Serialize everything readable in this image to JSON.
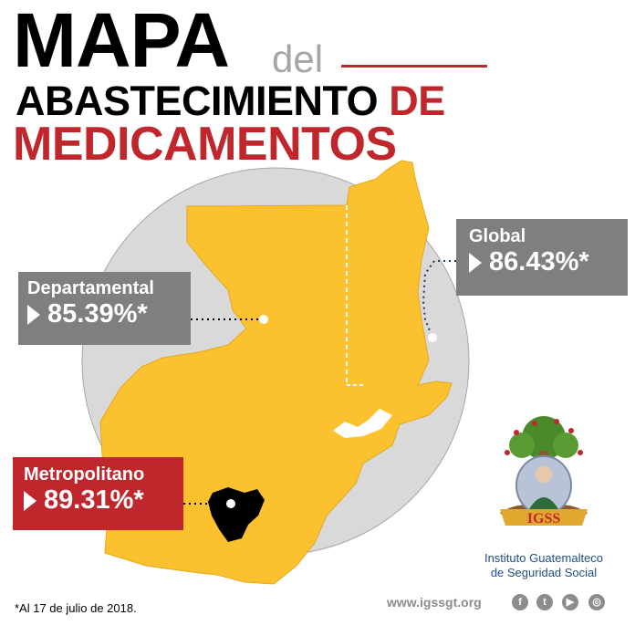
{
  "title": {
    "line1_main": "MAPA",
    "line1_small": "del",
    "line2_black": "ABASTECIMIENTO ",
    "line2_red": "DE",
    "line3": "MEDICAMENTOS"
  },
  "callouts": {
    "global": {
      "label": "Global",
      "value": "86.43%*"
    },
    "departamental": {
      "label": "Departamental",
      "value": "85.39%*"
    },
    "metropolitano": {
      "label": "Metropolitano",
      "value": "89.31%*"
    }
  },
  "footnote": "*Al 17 de julio de 2018.",
  "logo": {
    "badge": "IGSS",
    "name_line1": "Instituto Guatemalteco",
    "name_line2": "de Seguridad Social"
  },
  "footer": {
    "website": "www.igssgt.org",
    "social_icons": [
      "facebook-icon",
      "twitter-icon",
      "youtube-icon",
      "instagram-icon"
    ]
  },
  "colors": {
    "red": "#c0272d",
    "map_yellow": "#fcc12e",
    "circle_gray": "#d9d9d9",
    "box_gray": "#7f7f7f"
  }
}
